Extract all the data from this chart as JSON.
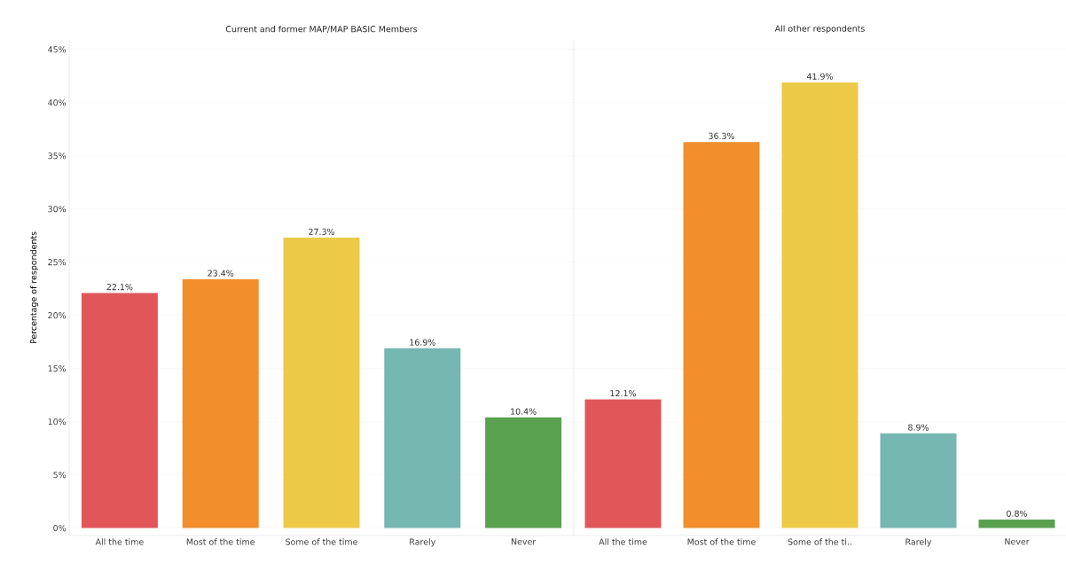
{
  "chart_data": [
    {
      "type": "bar",
      "title": "Current and former MAP/MAP BASIC Members",
      "ylabel": "Percentage of respondents",
      "categories": [
        "All the time",
        "Most of the time",
        "Some of the time",
        "Rarely",
        "Never"
      ],
      "values": [
        22.1,
        23.4,
        27.3,
        16.9,
        10.4
      ],
      "value_labels": [
        "22.1%",
        "23.4%",
        "27.3%",
        "16.9%",
        "10.4%"
      ],
      "colors": [
        "#e15759",
        "#f28e2b",
        "#edc948",
        "#76b7b2",
        "#59a14f"
      ],
      "ylim": [
        -0.7,
        45.9
      ],
      "yticks": [
        {
          "value": 0,
          "label": "0%"
        },
        {
          "value": 5,
          "label": "5%"
        },
        {
          "value": 10,
          "label": "10%"
        },
        {
          "value": 15,
          "label": "15%"
        },
        {
          "value": 20,
          "label": "20%"
        },
        {
          "value": 25,
          "label": "25%"
        },
        {
          "value": 30,
          "label": "30%"
        },
        {
          "value": 35,
          "label": "35%"
        },
        {
          "value": 40,
          "label": "40%"
        },
        {
          "value": 45,
          "label": "45%"
        }
      ],
      "grid": "y"
    },
    {
      "type": "bar",
      "title": "All other respondents",
      "categories": [
        "All the time",
        "Most of the time",
        "Some of the ti..",
        "Rarely",
        "Never"
      ],
      "values": [
        12.1,
        36.3,
        41.9,
        8.9,
        0.8
      ],
      "value_labels": [
        "12.1%",
        "36.3%",
        "41.9%",
        "8.9%",
        "0.8%"
      ],
      "colors": [
        "#e15759",
        "#f28e2b",
        "#edc948",
        "#76b7b2",
        "#59a14f"
      ],
      "ylim": [
        -0.7,
        45.9
      ],
      "yticks": [
        {
          "value": 0,
          "label": null
        },
        {
          "value": 5,
          "label": null
        },
        {
          "value": 10,
          "label": null
        },
        {
          "value": 15,
          "label": null
        },
        {
          "value": 20,
          "label": null
        },
        {
          "value": 25,
          "label": null
        },
        {
          "value": 30,
          "label": null
        },
        {
          "value": 35,
          "label": null
        },
        {
          "value": 40,
          "label": null
        },
        {
          "value": 45,
          "label": null
        }
      ],
      "grid": "y",
      "tick_labels": "x"
    }
  ]
}
